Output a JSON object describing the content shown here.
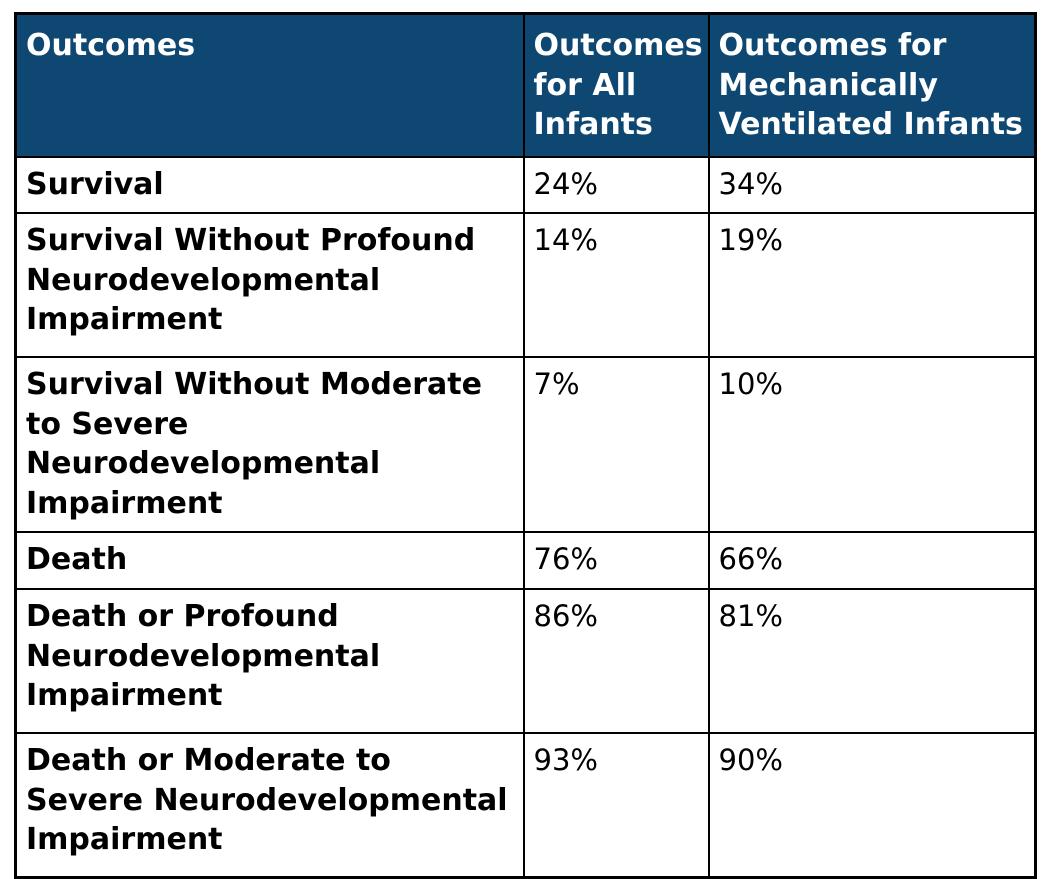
{
  "colors": {
    "header_bg": "#0E4872",
    "header_text": "#FFFFFF",
    "border": "#000000",
    "body_text": "#000000",
    "page_bg": "#FFFFFF"
  },
  "chart_data": {
    "type": "table",
    "title": "",
    "columns": [
      "Outcomes",
      "Outcomes for All Infants",
      "Outcomes for Mechanically Ventilated Infants"
    ],
    "rows": [
      [
        "Survival",
        "24%",
        "34%"
      ],
      [
        "Survival Without Profound Neurodevelopmental Impairment",
        "14%",
        "19%"
      ],
      [
        "Survival Without Moderate to Severe Neurodevelopmental Impairment",
        "7%",
        "10%"
      ],
      [
        "Death",
        "76%",
        "66%"
      ],
      [
        "Death or Profound Neurodevelopmental Impairment",
        "86%",
        "81%"
      ],
      [
        "Death or Moderate to Severe Neurodevelopmental Impairment",
        "93%",
        "90%"
      ]
    ],
    "series": [
      {
        "name": "Outcomes for All Infants",
        "values": [
          24,
          14,
          7,
          76,
          86,
          93
        ]
      },
      {
        "name": "Outcomes for Mechanically Ventilated Infants",
        "values": [
          34,
          19,
          10,
          66,
          81,
          90
        ]
      }
    ],
    "categories": [
      "Survival",
      "Survival Without Profound Neurodevelopmental Impairment",
      "Survival Without Moderate to Severe Neurodevelopmental Impairment",
      "Death",
      "Death or Profound Neurodevelopmental Impairment",
      "Death or Moderate to Severe Neurodevelopmental Impairment"
    ],
    "unit": "%"
  }
}
